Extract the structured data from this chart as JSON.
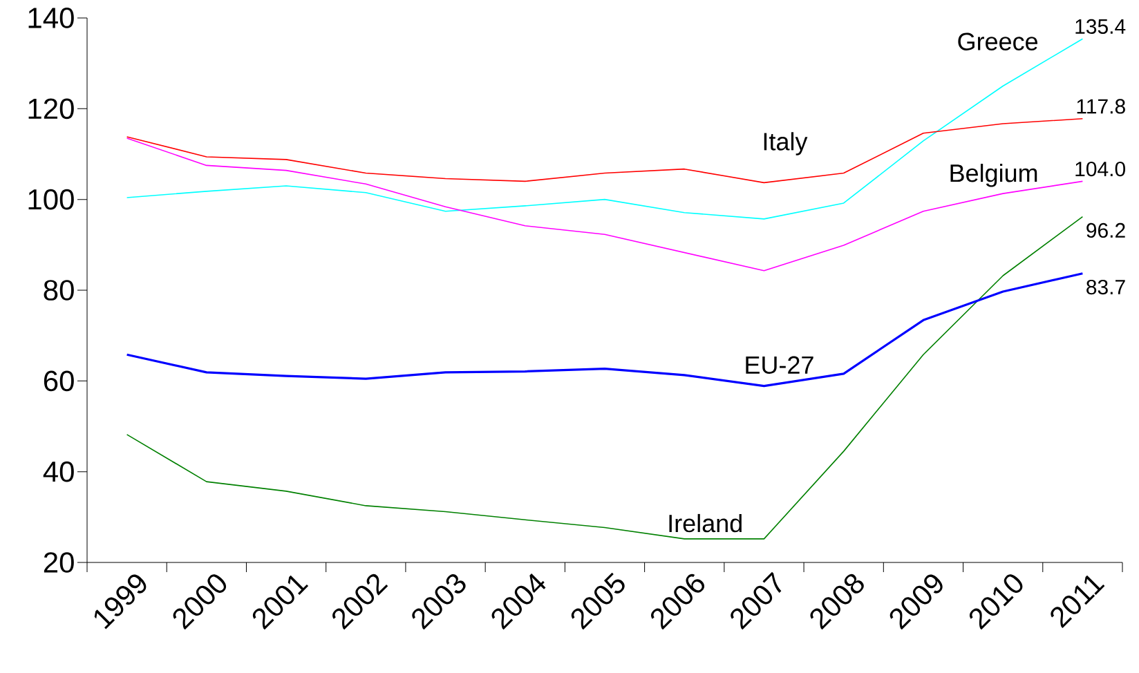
{
  "chart_data": {
    "type": "line",
    "categories": [
      "1999",
      "2000",
      "2001",
      "2002",
      "2003",
      "2004",
      "2005",
      "2006",
      "2007",
      "2008",
      "2009",
      "2010",
      "2011"
    ],
    "ylim": [
      20,
      140
    ],
    "yticks": [
      20,
      40,
      60,
      80,
      100,
      120,
      140
    ],
    "grid": false,
    "marker": "none",
    "line_style": "solid",
    "series": [
      {
        "name": "Greece",
        "color": "#00ffff",
        "values": [
          100.4,
          101.8,
          103.0,
          101.5,
          97.4,
          98.6,
          100.0,
          97.1,
          95.7,
          99.2,
          112.9,
          125.0,
          135.4
        ],
        "value_labels": [
          null,
          null,
          null,
          null,
          null,
          null,
          null,
          null,
          null,
          null,
          null,
          null,
          "135.4"
        ]
      },
      {
        "name": "Italy",
        "color": "#ff0000",
        "values": [
          113.8,
          109.4,
          108.8,
          105.8,
          104.6,
          104.0,
          105.8,
          106.7,
          103.7,
          105.8,
          114.6,
          116.7,
          117.8
        ],
        "value_labels": [
          null,
          null,
          null,
          null,
          null,
          null,
          null,
          null,
          null,
          null,
          null,
          null,
          "117.8"
        ]
      },
      {
        "name": "Belgium",
        "color": "#ff00ff",
        "values": [
          113.5,
          107.5,
          106.4,
          103.4,
          98.4,
          94.2,
          92.3,
          88.3,
          84.3,
          89.9,
          97.4,
          101.3,
          104.0
        ],
        "value_labels": [
          null,
          null,
          null,
          null,
          null,
          null,
          null,
          null,
          null,
          null,
          null,
          null,
          "104.0"
        ]
      },
      {
        "name": "Ireland",
        "color": "#008000",
        "values": [
          48.2,
          37.8,
          35.7,
          32.5,
          31.2,
          29.4,
          27.7,
          25.2,
          25.2,
          44.5,
          65.8,
          83.2,
          96.2
        ],
        "value_labels": [
          null,
          null,
          null,
          null,
          null,
          null,
          null,
          null,
          null,
          null,
          null,
          null,
          "96.2"
        ]
      },
      {
        "name": "EU-27",
        "color": "#0000ff",
        "values": [
          65.8,
          61.9,
          61.1,
          60.5,
          61.9,
          62.1,
          62.7,
          61.3,
          58.9,
          61.6,
          73.4,
          79.7,
          83.7
        ],
        "value_labels": [
          null,
          null,
          null,
          null,
          null,
          null,
          null,
          null,
          null,
          null,
          null,
          null,
          "83.7"
        ]
      }
    ]
  }
}
